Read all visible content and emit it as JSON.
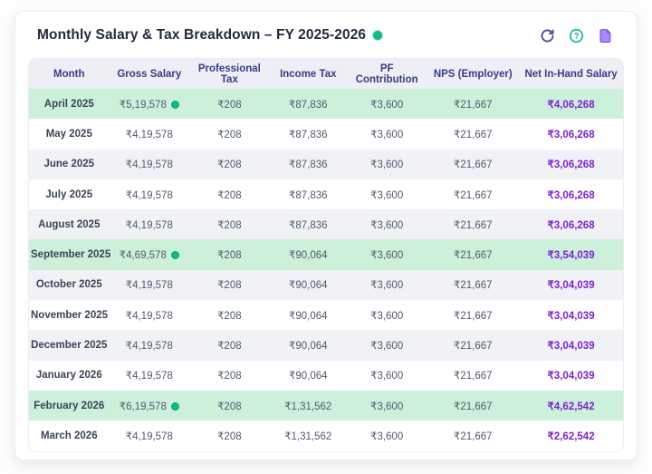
{
  "header": {
    "title": "Monthly Salary & Tax Breakdown – FY 2025-2026",
    "status_indicator": "green-dot",
    "actions": [
      {
        "id": "refresh",
        "icon": "refresh-icon",
        "color": "#4b4895"
      },
      {
        "id": "help",
        "icon": "help-icon",
        "color": "#14b8a6"
      },
      {
        "id": "export-document",
        "icon": "document-icon",
        "color": "#8b5cf6"
      }
    ]
  },
  "table": {
    "columns": [
      "Month",
      "Gross Salary",
      "Professional Tax",
      "Income Tax",
      "PF Contribution",
      "NPS (Employer)",
      "Net In-Hand Salary"
    ],
    "rows": [
      {
        "month": "April 2025",
        "gross": "₹5,19,578",
        "bonus_dot": true,
        "professional_tax": "₹208",
        "income_tax": "₹87,836",
        "pf": "₹3,600",
        "nps": "₹21,667",
        "net": "₹4,06,268",
        "highlight": true
      },
      {
        "month": "May 2025",
        "gross": "₹4,19,578",
        "bonus_dot": false,
        "professional_tax": "₹208",
        "income_tax": "₹87,836",
        "pf": "₹3,600",
        "nps": "₹21,667",
        "net": "₹3,06,268",
        "highlight": false
      },
      {
        "month": "June 2025",
        "gross": "₹4,19,578",
        "bonus_dot": false,
        "professional_tax": "₹208",
        "income_tax": "₹87,836",
        "pf": "₹3,600",
        "nps": "₹21,667",
        "net": "₹3,06,268",
        "highlight": false
      },
      {
        "month": "July 2025",
        "gross": "₹4,19,578",
        "bonus_dot": false,
        "professional_tax": "₹208",
        "income_tax": "₹87,836",
        "pf": "₹3,600",
        "nps": "₹21,667",
        "net": "₹3,06,268",
        "highlight": false
      },
      {
        "month": "August 2025",
        "gross": "₹4,19,578",
        "bonus_dot": false,
        "professional_tax": "₹208",
        "income_tax": "₹87,836",
        "pf": "₹3,600",
        "nps": "₹21,667",
        "net": "₹3,06,268",
        "highlight": false
      },
      {
        "month": "September 2025",
        "gross": "₹4,69,578",
        "bonus_dot": true,
        "professional_tax": "₹208",
        "income_tax": "₹90,064",
        "pf": "₹3,600",
        "nps": "₹21,667",
        "net": "₹3,54,039",
        "highlight": true
      },
      {
        "month": "October 2025",
        "gross": "₹4,19,578",
        "bonus_dot": false,
        "professional_tax": "₹208",
        "income_tax": "₹90,064",
        "pf": "₹3,600",
        "nps": "₹21,667",
        "net": "₹3,04,039",
        "highlight": false
      },
      {
        "month": "November 2025",
        "gross": "₹4,19,578",
        "bonus_dot": false,
        "professional_tax": "₹208",
        "income_tax": "₹90,064",
        "pf": "₹3,600",
        "nps": "₹21,667",
        "net": "₹3,04,039",
        "highlight": false
      },
      {
        "month": "December 2025",
        "gross": "₹4,19,578",
        "bonus_dot": false,
        "professional_tax": "₹208",
        "income_tax": "₹90,064",
        "pf": "₹3,600",
        "nps": "₹21,667",
        "net": "₹3,04,039",
        "highlight": false
      },
      {
        "month": "January 2026",
        "gross": "₹4,19,578",
        "bonus_dot": false,
        "professional_tax": "₹208",
        "income_tax": "₹90,064",
        "pf": "₹3,600",
        "nps": "₹21,667",
        "net": "₹3,04,039",
        "highlight": false
      },
      {
        "month": "February 2026",
        "gross": "₹6,19,578",
        "bonus_dot": true,
        "professional_tax": "₹208",
        "income_tax": "₹1,31,562",
        "pf": "₹3,600",
        "nps": "₹21,667",
        "net": "₹4,62,542",
        "highlight": true
      },
      {
        "month": "March 2026",
        "gross": "₹4,19,578",
        "bonus_dot": false,
        "professional_tax": "₹208",
        "income_tax": "₹1,31,562",
        "pf": "₹3,600",
        "nps": "₹21,667",
        "net": "₹2,62,542",
        "highlight": false
      }
    ]
  },
  "colors": {
    "highlight_row": "#cdf0db",
    "stripe_row": "#f1f2f5",
    "header_bg": "#edeff4",
    "header_text": "#363d87",
    "net_value_text": "#7e22ce",
    "accent_green": "#10b981",
    "icon_indigo": "#4b4895",
    "icon_teal": "#14b8a6",
    "icon_purple": "#8b5cf6"
  }
}
